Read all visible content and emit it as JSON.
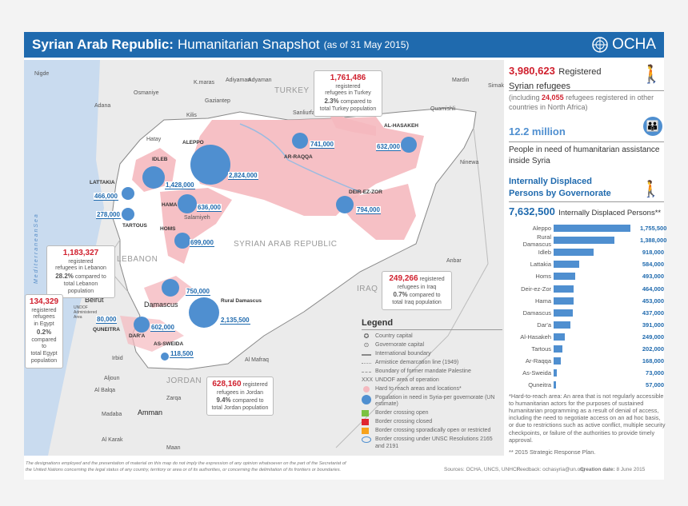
{
  "header": {
    "title_bold": "Syrian Arab Republic:",
    "title": "Humanitarian Snapshot",
    "date": "(as of 31 May 2015)",
    "logo": "OCHA"
  },
  "map": {
    "countries": [
      "TURKEY",
      "LEBANON",
      "IRAQ",
      "JORDAN",
      "SYRIAN ARAB REPUBLIC"
    ],
    "sea": "M e d i t e r r a n e a n   S e a",
    "places": [
      "Nigde",
      "K.maras",
      "Adiyaman",
      "Adyaman",
      "Osmaniye",
      "Gaziantep",
      "Adana",
      "Kilis",
      "Hatay",
      "Sanliurfa",
      "Mardin",
      "Sirnak",
      "Quamishli",
      "Ninewa",
      "Anbar",
      "Al Mafraq",
      "Zarqa",
      "Madaba",
      "Al Karak",
      "Maan",
      "Salamiyeh",
      "Aljoun",
      "Irbid",
      "Al Balqa",
      "UNDOF Administered Area",
      "Ar-Raqqa"
    ],
    "governorates": [
      "ALEPPO",
      "IDLEB",
      "LATTAKIA",
      "HAMA",
      "TARTOUS",
      "HOMS",
      "AL-HASAKEH",
      "AR-RAQQA",
      "DEIR-EZ-ZOR",
      "Rural Damascus",
      "DAR'A",
      "AS-SWEIDA",
      "QUNEITRA"
    ],
    "capitals": [
      "Beirut",
      "Damascus",
      "Amman"
    ],
    "pin": [
      "741,000",
      "632,000",
      "2,824,000",
      "1,428,000",
      "466,000",
      "636,000",
      "278,000",
      "699,000",
      "794,000",
      "750,000",
      "2,135,500",
      "602,000",
      "80,000",
      "118,500"
    ],
    "callouts": {
      "turkey": {
        "num": "1,761,486",
        "l1": "registered",
        "l2": "refugees in Turkey",
        "pct": "2.3%",
        "l3": "compared to",
        "l4": "total Turkey population"
      },
      "lebanon": {
        "num": "1,183,327",
        "l1": "registered",
        "l2": "refugees in Lebanon",
        "pct": "28.2%",
        "l3": "compared to",
        "l4": "total Lebanon population"
      },
      "egypt": {
        "num": "134,329",
        "l1": "registered",
        "l2": "refugees",
        "l2b": "in Egypt",
        "pct": "0.2%",
        "l3": "compared to",
        "l4": "total Egypt",
        "l5": "population"
      },
      "iraq": {
        "num": "249,266",
        "l1": "registered",
        "l2": "refugees in Iraq",
        "pct": "0.7%",
        "l3": "compared to",
        "l4": "total Iraq population"
      },
      "jordan": {
        "num": "628,160",
        "l1": "registered",
        "l2": "refugees in Jordan",
        "pct": "9.4%",
        "l3": "compared to",
        "l4": "total Jordan population"
      }
    }
  },
  "legend": {
    "title": "Legend",
    "items": [
      "Country capital",
      "Governorate capital",
      "International boundary",
      "Armistice demarcation  line (1949)",
      "Boundary of former mandate Palestine",
      "UNDOF area of operation",
      "Hard to reach areas and locations*",
      "Population in need in Syria-per governorate (UN estimate)",
      "Border crossing open",
      "Border crossing closed",
      "Border crossing sporadically open or restricted",
      "Border crossing under UNSC Resolutions 2165 and 2191"
    ]
  },
  "refugees": {
    "num": "3,980,623",
    "label1": "Registered",
    "label2": "Syrian refugees",
    "note_pre": "(including",
    "note_num": "24,055",
    "note_post": "refugees registered in other countries in North Africa)"
  },
  "pin": {
    "num": "12.2 million",
    "label": "People in need of humanitarian assistance inside Syria"
  },
  "idp": {
    "title": "Internally Displaced Persons by Governorate",
    "total": "7,632,500",
    "total_label": "Internally Displaced Persons**"
  },
  "chart_data": {
    "type": "bar",
    "orientation": "horizontal",
    "categories": [
      "Aleppo",
      "Rural Damascus",
      "Idleb",
      "Lattakia",
      "Homs",
      "Deir-ez-Zor",
      "Hama",
      "Damascus",
      "Dar'a",
      "Al-Hasakeh",
      "Tartous",
      "Ar-Raqqa",
      "As-Sweida",
      "Quneitra"
    ],
    "values": [
      1755500,
      1388000,
      918000,
      584000,
      493000,
      464000,
      453000,
      437000,
      391000,
      249000,
      202000,
      168000,
      73000,
      57000
    ],
    "labels": [
      "1,755,500",
      "1,388,000",
      "918,000",
      "584,000",
      "493,000",
      "464,000",
      "453,000",
      "437,000",
      "391,000",
      "249,000",
      "202,000",
      "168,000",
      "73,000",
      "57,000"
    ],
    "color": "#4f8fd0"
  },
  "notes": {
    "hard": "*Hard-to-reach area: An area that is not regularly accessible to humanitarian actors for the purposes of sustained humanitarian programming as a result of denial of access, including the need to negotiate access on an ad hoc basis, or due to restrictions such as active conflict, multiple security checkpoints, or failure of the authorities to provide timely approval.",
    "srp": "** 2015 Strategic Response Plan."
  },
  "footer": {
    "disclaimer1": "The designations employed and the presentation of material on this map do not imply the expression of any opinion whatsoever on the part of the Secretariat of",
    "disclaimer2": "the United Nations concerning the legal status of any country, territory or area or of its authorities, or concerning the delimitation of its frontiers or boundaries.",
    "sources": "Sources: OCHA, UNCS, UNHCR",
    "feedback": "Feedback: ochasyria@un.org",
    "creation_label": "Creation date:",
    "creation_date": "8 June 2015"
  },
  "colors": {
    "header": "#1f6aae",
    "red": "#d0202e",
    "blue": "#1f6aae",
    "pink": "#f5b9bf",
    "open": "#7cc242",
    "closed": "#e02630",
    "sporadic": "#f7a21b"
  }
}
